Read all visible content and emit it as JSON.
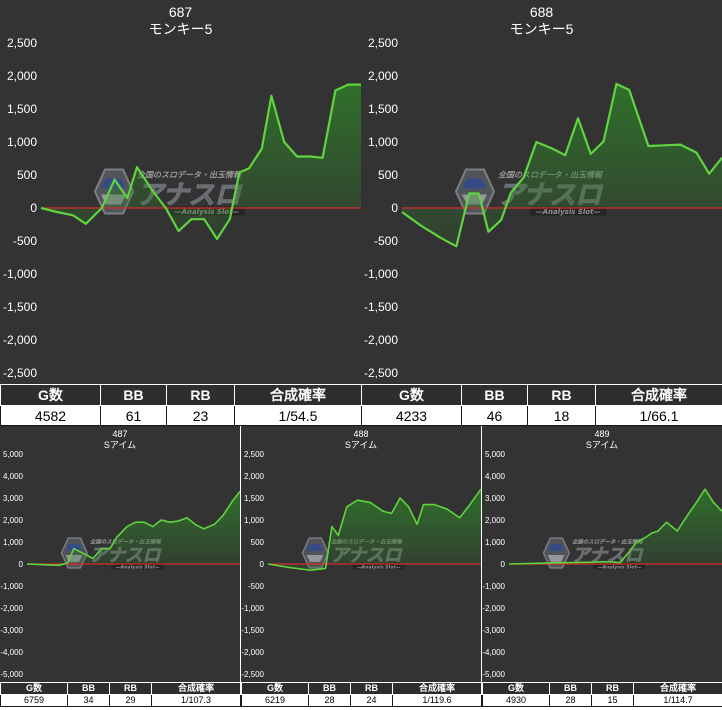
{
  "colors": {
    "background": "#333333",
    "line": "#5fd43f",
    "area": "#2f7a28",
    "zero_line": "#d62a2a",
    "grid": "#555555",
    "text": "#ffffff",
    "header_bg": "#2e2e2e"
  },
  "watermark": {
    "main": "アナスロ",
    "top": "全国のスロデータ・出玉情報",
    "sub": "—Analysis Slot—"
  },
  "table_headers": {
    "games": "G数",
    "bb": "BB",
    "rb": "RB",
    "rate": "合成確率"
  },
  "charts": [
    {
      "number": "687",
      "name": "モンキー5",
      "stats": {
        "games": "4582",
        "bb": "61",
        "rb": "23",
        "rate": "1/54.5"
      }
    },
    {
      "number": "688",
      "name": "モンキー5",
      "stats": {
        "games": "4233",
        "bb": "46",
        "rb": "18",
        "rate": "1/66.1"
      }
    },
    {
      "number": "487",
      "name": "Sアイム",
      "stats": {
        "games": "6759",
        "bb": "34",
        "rb": "29",
        "rate": "1/107.3"
      }
    },
    {
      "number": "488",
      "name": "Sアイム",
      "stats": {
        "games": "6219",
        "bb": "28",
        "rb": "24",
        "rate": "1/119.6"
      }
    },
    {
      "number": "489",
      "name": "Sアイム",
      "stats": {
        "games": "4930",
        "bb": "28",
        "rb": "15",
        "rate": "1/114.7"
      }
    }
  ],
  "chart_data": [
    {
      "type": "line",
      "title": "687 モンキー5",
      "xlabel": "",
      "ylabel": "",
      "ylim": [
        -2500,
        2500
      ],
      "yticks": [
        "2,500",
        "2,000",
        "1,500",
        "1,000",
        "500",
        "0",
        "-500",
        "-1,000",
        "-1,500",
        "-2,000",
        "-2,500"
      ],
      "grid": false,
      "x": [
        0,
        0.05,
        0.1,
        0.14,
        0.19,
        0.23,
        0.27,
        0.3,
        0.35,
        0.39,
        0.43,
        0.47,
        0.51,
        0.55,
        0.59,
        0.62,
        0.65,
        0.69,
        0.72,
        0.76,
        0.8,
        0.84,
        0.88,
        0.92,
        0.96,
        1.0
      ],
      "values": [
        0,
        -60,
        -110,
        -240,
        0,
        430,
        150,
        620,
        250,
        0,
        -350,
        -170,
        -170,
        -470,
        -170,
        540,
        600,
        900,
        1700,
        1000,
        780,
        780,
        760,
        1780,
        1870,
        1870
      ]
    },
    {
      "type": "line",
      "title": "688 モンキー5",
      "xlabel": "",
      "ylabel": "",
      "ylim": [
        -2500,
        2500
      ],
      "yticks": [
        "2,500",
        "2,000",
        "1,500",
        "1,000",
        "500",
        "0",
        "-500",
        "-1,000",
        "-1,500",
        "-2,000",
        "-2,500"
      ],
      "grid": false,
      "x": [
        0,
        0.06,
        0.12,
        0.17,
        0.21,
        0.24,
        0.27,
        0.31,
        0.34,
        0.38,
        0.42,
        0.47,
        0.51,
        0.55,
        0.59,
        0.63,
        0.67,
        0.71,
        0.77,
        0.82,
        0.87,
        0.92,
        0.96,
        1.0
      ],
      "values": [
        -60,
        -270,
        -450,
        -580,
        220,
        220,
        -360,
        -180,
        230,
        460,
        1000,
        900,
        800,
        1360,
        820,
        1010,
        1880,
        1790,
        940,
        950,
        960,
        840,
        520,
        760
      ]
    },
    {
      "type": "line",
      "title": "487 Sアイム",
      "xlabel": "",
      "ylabel": "",
      "ylim": [
        -5000,
        5000
      ],
      "yticks": [
        "5,000",
        "4,000",
        "3,000",
        "2,000",
        "1,000",
        "0",
        "-1,000",
        "-2,000",
        "-3,000",
        "-4,000",
        "-5,000"
      ],
      "grid": false,
      "x": [
        0,
        0.08,
        0.15,
        0.19,
        0.22,
        0.27,
        0.31,
        0.35,
        0.39,
        0.42,
        0.47,
        0.51,
        0.55,
        0.59,
        0.63,
        0.67,
        0.71,
        0.75,
        0.79,
        0.83,
        0.88,
        0.92,
        0.96,
        1.0
      ],
      "values": [
        0,
        -30,
        -60,
        50,
        700,
        450,
        250,
        700,
        700,
        1200,
        1700,
        1900,
        1900,
        1700,
        2000,
        1900,
        1950,
        2100,
        1800,
        1600,
        1800,
        2200,
        2800,
        3300
      ]
    },
    {
      "type": "line",
      "title": "488 Sアイム",
      "xlabel": "",
      "ylabel": "",
      "ylim": [
        -2500,
        2500
      ],
      "yticks": [
        "2,500",
        "2,000",
        "1,500",
        "1,000",
        "500",
        "0",
        "-500",
        "-1,000",
        "-1,500",
        "-2,000",
        "-2,500"
      ],
      "grid": false,
      "x": [
        0,
        0.1,
        0.2,
        0.27,
        0.3,
        0.33,
        0.37,
        0.42,
        0.48,
        0.54,
        0.58,
        0.62,
        0.66,
        0.7,
        0.73,
        0.78,
        0.84,
        0.9,
        0.94,
        1.0
      ],
      "values": [
        0,
        -80,
        -140,
        -100,
        850,
        650,
        1300,
        1450,
        1400,
        1200,
        1150,
        1500,
        1300,
        900,
        1350,
        1350,
        1250,
        1050,
        1300,
        1700
      ]
    },
    {
      "type": "line",
      "title": "489 Sアイム",
      "xlabel": "",
      "ylabel": "",
      "ylim": [
        -5000,
        5000
      ],
      "yticks": [
        "5,000",
        "4,000",
        "3,000",
        "2,000",
        "1,000",
        "0",
        "-1,000",
        "-2,000",
        "-3,000",
        "-4,000",
        "-5,000"
      ],
      "grid": false,
      "x": [
        0,
        0.13,
        0.26,
        0.39,
        0.44,
        0.48,
        0.52,
        0.56,
        0.6,
        0.64,
        0.67,
        0.7,
        0.74,
        0.79,
        0.83,
        0.88,
        0.92,
        0.96,
        1.0
      ],
      "values": [
        0,
        30,
        60,
        80,
        100,
        100,
        60,
        500,
        1000,
        1200,
        1400,
        1500,
        1900,
        1500,
        2100,
        2800,
        3400,
        2800,
        2400
      ]
    }
  ]
}
